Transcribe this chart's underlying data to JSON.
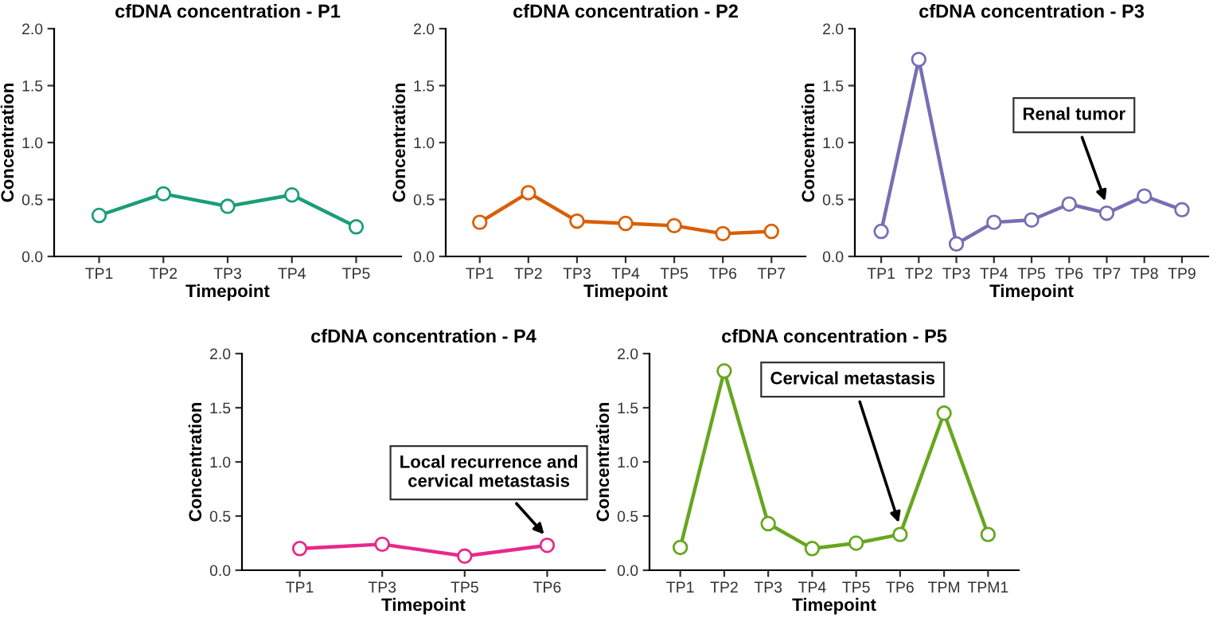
{
  "chart_data": [
    {
      "type": "line",
      "title": "cfDNA concentration - P1",
      "xlabel": "Timepoint",
      "ylabel": "Concentration",
      "categories": [
        "TP1",
        "TP2",
        "TP3",
        "TP4",
        "TP5"
      ],
      "series": [
        {
          "color": "#1b9e77",
          "values": [
            0.36,
            0.55,
            0.44,
            0.54,
            0.26
          ]
        }
      ],
      "ylim": [
        0,
        2
      ],
      "yticks": [
        {
          "value": 0,
          "label": "0.0"
        },
        {
          "value": 0.5,
          "label": "0.5"
        },
        {
          "value": 1,
          "label": "1.0"
        },
        {
          "value": 1.5,
          "label": "1.5"
        },
        {
          "value": 2,
          "label": "2.0"
        }
      ],
      "grid": false,
      "marker": "circle",
      "line_style": "solid"
    },
    {
      "type": "line",
      "title": "cfDNA concentration - P2",
      "xlabel": "Timepoint",
      "ylabel": "Concentration",
      "categories": [
        "TP1",
        "TP2",
        "TP3",
        "TP4",
        "TP5",
        "TP6",
        "TP7"
      ],
      "series": [
        {
          "color": "#d95f02",
          "values": [
            0.3,
            0.56,
            0.31,
            0.29,
            0.27,
            0.2,
            0.22
          ]
        }
      ],
      "ylim": [
        0,
        2
      ],
      "yticks": [
        {
          "value": 0,
          "label": "0.0"
        },
        {
          "value": 0.5,
          "label": "0.5"
        },
        {
          "value": 1,
          "label": "1.0"
        },
        {
          "value": 1.5,
          "label": "1.5"
        },
        {
          "value": 2,
          "label": "2.0"
        }
      ],
      "grid": false,
      "marker": "circle",
      "line_style": "solid"
    },
    {
      "type": "line",
      "title": "cfDNA concentration - P3",
      "xlabel": "Timepoint",
      "ylabel": "Concentration",
      "categories": [
        "TP1",
        "TP2",
        "TP3",
        "TP4",
        "TP5",
        "TP6",
        "TP7",
        "TP8",
        "TP9"
      ],
      "series": [
        {
          "color": "#7570b3",
          "values": [
            0.22,
            1.73,
            0.11,
            0.3,
            0.32,
            0.46,
            0.38,
            0.53,
            0.41
          ]
        }
      ],
      "ylim": [
        0,
        2
      ],
      "yticks": [
        {
          "value": 0,
          "label": "0.0"
        },
        {
          "value": 0.5,
          "label": "0.5"
        },
        {
          "value": 1,
          "label": "1.0"
        },
        {
          "value": 1.5,
          "label": "1.5"
        },
        {
          "value": 2,
          "label": "2.0"
        }
      ],
      "grid": false,
      "marker": "circle",
      "line_style": "solid",
      "annotations": [
        {
          "text": "Renal tumor",
          "x": "TP7",
          "y": 0.45
        }
      ]
    },
    {
      "type": "line",
      "title": "cfDNA concentration - P4",
      "xlabel": "Timepoint",
      "ylabel": "Concentration",
      "categories": [
        "TP1",
        "TP3",
        "TP5",
        "TP6"
      ],
      "series": [
        {
          "color": "#e7298a",
          "values": [
            0.2,
            0.24,
            0.13,
            0.23
          ]
        }
      ],
      "ylim": [
        0,
        2
      ],
      "yticks": [
        {
          "value": 0,
          "label": "0.0"
        },
        {
          "value": 0.5,
          "label": "0.5"
        },
        {
          "value": 1,
          "label": "1.0"
        },
        {
          "value": 1.5,
          "label": "1.5"
        },
        {
          "value": 2,
          "label": "2.0"
        }
      ],
      "grid": false,
      "marker": "circle",
      "line_style": "solid",
      "annotations": [
        {
          "text": "Local recurrence and\ncervical metastasis",
          "x": "TP6",
          "y": 0.3
        }
      ]
    },
    {
      "type": "line",
      "title": "cfDNA concentration - P5",
      "xlabel": "Timepoint",
      "ylabel": "Concentration",
      "categories": [
        "TP1",
        "TP2",
        "TP3",
        "TP4",
        "TP5",
        "TP6",
        "TPM",
        "TPM1"
      ],
      "series": [
        {
          "color": "#66a61e",
          "values": [
            0.21,
            1.84,
            0.43,
            0.2,
            0.25,
            0.33,
            1.45,
            0.33
          ]
        }
      ],
      "ylim": [
        0,
        2
      ],
      "yticks": [
        {
          "value": 0,
          "label": "0.0"
        },
        {
          "value": 0.5,
          "label": "0.5"
        },
        {
          "value": 1,
          "label": "1.0"
        },
        {
          "value": 1.5,
          "label": "1.5"
        },
        {
          "value": 2,
          "label": "2.0"
        }
      ],
      "grid": false,
      "marker": "circle",
      "line_style": "solid",
      "annotations": [
        {
          "text": "Cervical metastasis",
          "x": "TP6",
          "y": 0.4
        }
      ]
    }
  ]
}
